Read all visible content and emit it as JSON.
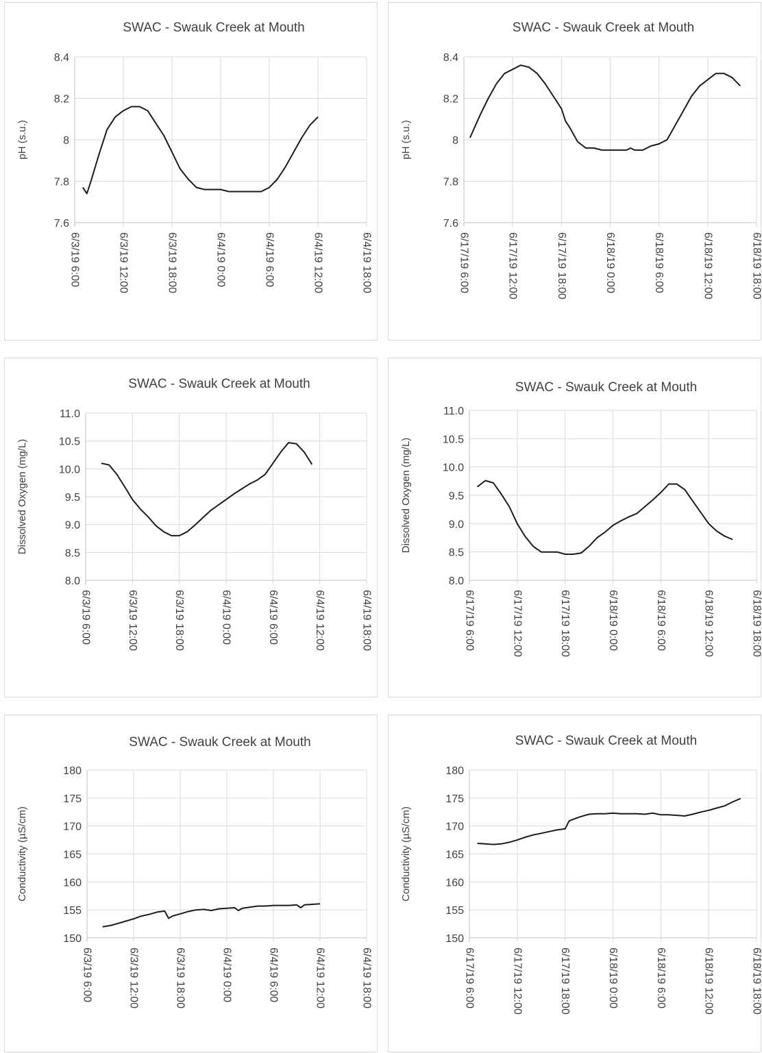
{
  "chart_data": [
    {
      "type": "line",
      "title": "SWAC - Swauk Creek at Mouth",
      "ylabel": "pH (s.u.)",
      "ylim": [
        7.6,
        8.4
      ],
      "yticks": [
        "7.6",
        "7.8",
        "8",
        "8.2",
        "8.4"
      ],
      "xlim": [
        "2019-06-03 06:00",
        "2019-06-04 18:00"
      ],
      "xticks": [
        "6/3/19 6:00",
        "6/3/19 12:00",
        "6/3/19 18:00",
        "6/4/19 0:00",
        "6/4/19 6:00",
        "6/4/19 12:00",
        "6/4/19 18:00"
      ],
      "grid": true,
      "series": [
        {
          "x": [
            "2019-06-03 07:00",
            "2019-06-03 07:30",
            "2019-06-03 08:00",
            "2019-06-03 09:00",
            "2019-06-03 10:00",
            "2019-06-03 11:00",
            "2019-06-03 12:00",
            "2019-06-03 13:00",
            "2019-06-03 14:00",
            "2019-06-03 15:00",
            "2019-06-03 16:00",
            "2019-06-03 17:00",
            "2019-06-03 18:00",
            "2019-06-03 19:00",
            "2019-06-03 20:00",
            "2019-06-03 21:00",
            "2019-06-03 22:00",
            "2019-06-04 00:00",
            "2019-06-04 01:00",
            "2019-06-04 03:00",
            "2019-06-04 05:00",
            "2019-06-04 06:00",
            "2019-06-04 07:00",
            "2019-06-04 08:00",
            "2019-06-04 09:00",
            "2019-06-04 10:00",
            "2019-06-04 11:00",
            "2019-06-04 12:00"
          ],
          "values": [
            7.77,
            7.74,
            7.8,
            7.93,
            8.05,
            8.11,
            8.14,
            8.16,
            8.16,
            8.14,
            8.08,
            8.02,
            7.94,
            7.86,
            7.81,
            7.77,
            7.76,
            7.76,
            7.75,
            7.75,
            7.75,
            7.77,
            7.81,
            7.87,
            7.94,
            8.01,
            8.07,
            8.11
          ]
        }
      ]
    },
    {
      "type": "line",
      "title": "SWAC - Swauk Creek at Mouth",
      "ylabel": "pH (s.u.)",
      "ylim": [
        7.6,
        8.4
      ],
      "yticks": [
        "7.6",
        "7.8",
        "8",
        "8.2",
        "8.4"
      ],
      "xlim": [
        "2019-06-17 06:00",
        "2019-06-18 18:00"
      ],
      "xticks": [
        "6/17/19 6:00",
        "6/17/19 12:00",
        "6/17/19 18:00",
        "6/18/19 0:00",
        "6/18/19 6:00",
        "6/18/19 12:00",
        "6/18/19 18:00"
      ],
      "grid": true,
      "series": [
        {
          "x": [
            "2019-06-17 06:45",
            "2019-06-17 08:00",
            "2019-06-17 09:00",
            "2019-06-17 10:00",
            "2019-06-17 11:00",
            "2019-06-17 12:00",
            "2019-06-17 13:00",
            "2019-06-17 14:00",
            "2019-06-17 15:00",
            "2019-06-17 16:00",
            "2019-06-17 17:00",
            "2019-06-17 18:00",
            "2019-06-17 18:30",
            "2019-06-17 19:00",
            "2019-06-17 20:00",
            "2019-06-17 21:00",
            "2019-06-17 22:00",
            "2019-06-17 23:00",
            "2019-06-18 00:00",
            "2019-06-18 01:00",
            "2019-06-18 02:00",
            "2019-06-18 02:30",
            "2019-06-18 03:00",
            "2019-06-18 04:00",
            "2019-06-18 05:00",
            "2019-06-18 06:00",
            "2019-06-18 07:00",
            "2019-06-18 08:00",
            "2019-06-18 09:00",
            "2019-06-18 10:00",
            "2019-06-18 11:00",
            "2019-06-18 12:00",
            "2019-06-18 13:00",
            "2019-06-18 14:00",
            "2019-06-18 15:00",
            "2019-06-18 16:00"
          ],
          "values": [
            8.01,
            8.12,
            8.2,
            8.27,
            8.32,
            8.34,
            8.36,
            8.35,
            8.32,
            8.27,
            8.21,
            8.15,
            8.09,
            8.06,
            7.99,
            7.96,
            7.96,
            7.95,
            7.95,
            7.95,
            7.95,
            7.96,
            7.95,
            7.95,
            7.97,
            7.98,
            8.0,
            8.07,
            8.14,
            8.21,
            8.26,
            8.29,
            8.32,
            8.32,
            8.3,
            8.26
          ]
        }
      ]
    },
    {
      "type": "line",
      "title": "SWAC - Swauk Creek at Mouth",
      "ylabel": "Dissolved Oxygen (mg/L)",
      "ylim": [
        8.0,
        11.0
      ],
      "yticks": [
        "8.0",
        "8.5",
        "9.0",
        "9.5",
        "10.0",
        "10.5",
        "11.0"
      ],
      "xlim": [
        "2019-06-03 06:00",
        "2019-06-04 18:00"
      ],
      "xticks": [
        "6/3/19 6:00",
        "6/3/19 12:00",
        "6/3/19 18:00",
        "6/4/19 0:00",
        "6/4/19 6:00",
        "6/4/19 12:00",
        "6/4/19 18:00"
      ],
      "grid": true,
      "series": [
        {
          "x": [
            "2019-06-03 08:00",
            "2019-06-03 09:00",
            "2019-06-03 10:00",
            "2019-06-03 11:00",
            "2019-06-03 12:00",
            "2019-06-03 13:00",
            "2019-06-03 14:00",
            "2019-06-03 15:00",
            "2019-06-03 16:00",
            "2019-06-03 17:00",
            "2019-06-03 18:00",
            "2019-06-03 19:00",
            "2019-06-03 20:00",
            "2019-06-03 21:00",
            "2019-06-03 22:00",
            "2019-06-03 23:00",
            "2019-06-04 00:00",
            "2019-06-04 01:00",
            "2019-06-04 02:00",
            "2019-06-04 03:00",
            "2019-06-04 04:00",
            "2019-06-04 05:00",
            "2019-06-04 06:00",
            "2019-06-04 07:00",
            "2019-06-04 08:00",
            "2019-06-04 09:00",
            "2019-06-04 10:00",
            "2019-06-04 11:00"
          ],
          "values": [
            10.1,
            10.07,
            9.9,
            9.68,
            9.45,
            9.28,
            9.14,
            8.98,
            8.87,
            8.8,
            8.8,
            8.87,
            8.99,
            9.12,
            9.25,
            9.35,
            9.45,
            9.55,
            9.64,
            9.73,
            9.8,
            9.9,
            10.1,
            10.3,
            10.47,
            10.45,
            10.3,
            10.08
          ]
        }
      ]
    },
    {
      "type": "line",
      "title": "SWAC - Swauk Creek at Mouth",
      "ylabel": "Dissolved Oxygen (mg/L)",
      "ylim": [
        8.0,
        11.0
      ],
      "yticks": [
        "8.0",
        "8.5",
        "9.0",
        "9.5",
        "10.0",
        "10.5",
        "11.0"
      ],
      "xlim": [
        "2019-06-17 06:00",
        "2019-06-18 18:00"
      ],
      "xticks": [
        "6/17/19 6:00",
        "6/17/19 12:00",
        "6/17/19 18:00",
        "6/18/19 0:00",
        "6/18/19 6:00",
        "6/18/19 12:00",
        "6/18/19 18:00"
      ],
      "grid": true,
      "series": [
        {
          "x": [
            "2019-06-17 07:00",
            "2019-06-17 08:00",
            "2019-06-17 09:00",
            "2019-06-17 10:00",
            "2019-06-17 11:00",
            "2019-06-17 12:00",
            "2019-06-17 13:00",
            "2019-06-17 14:00",
            "2019-06-17 15:00",
            "2019-06-17 16:00",
            "2019-06-17 17:00",
            "2019-06-17 18:00",
            "2019-06-17 19:00",
            "2019-06-17 20:00",
            "2019-06-17 21:00",
            "2019-06-17 22:00",
            "2019-06-17 23:00",
            "2019-06-18 00:00",
            "2019-06-18 01:00",
            "2019-06-18 02:00",
            "2019-06-18 03:00",
            "2019-06-18 04:00",
            "2019-06-18 05:00",
            "2019-06-18 06:00",
            "2019-06-18 07:00",
            "2019-06-18 08:00",
            "2019-06-18 09:00",
            "2019-06-18 10:00",
            "2019-06-18 11:00",
            "2019-06-18 12:00",
            "2019-06-18 13:00",
            "2019-06-18 14:00",
            "2019-06-18 15:00"
          ],
          "values": [
            9.65,
            9.76,
            9.72,
            9.52,
            9.3,
            9.0,
            8.77,
            8.6,
            8.5,
            8.5,
            8.5,
            8.46,
            8.46,
            8.48,
            8.6,
            8.75,
            8.85,
            8.97,
            9.05,
            9.12,
            9.18,
            9.3,
            9.42,
            9.55,
            9.7,
            9.7,
            9.6,
            9.4,
            9.2,
            9.0,
            8.87,
            8.78,
            8.72
          ]
        }
      ]
    },
    {
      "type": "line",
      "title": "SWAC - Swauk Creek at Mouth",
      "ylabel": "Conductivity (µS/cm)",
      "ylim": [
        150,
        180
      ],
      "yticks": [
        "150",
        "155",
        "160",
        "165",
        "170",
        "175",
        "180"
      ],
      "xlim": [
        "2019-06-03 06:00",
        "2019-06-04 18:00"
      ],
      "xticks": [
        "6/3/19 6:00",
        "6/3/19 12:00",
        "6/3/19 18:00",
        "6/4/19 0:00",
        "6/4/19 6:00",
        "6/4/19 12:00",
        "6/4/19 18:00"
      ],
      "grid": true,
      "series": [
        {
          "x": [
            "2019-06-03 08:00",
            "2019-06-03 09:00",
            "2019-06-03 10:00",
            "2019-06-03 11:00",
            "2019-06-03 12:00",
            "2019-06-03 13:00",
            "2019-06-03 14:00",
            "2019-06-03 15:00",
            "2019-06-03 16:00",
            "2019-06-03 16:30",
            "2019-06-03 17:00",
            "2019-06-03 18:00",
            "2019-06-03 19:00",
            "2019-06-03 20:00",
            "2019-06-03 21:00",
            "2019-06-03 22:00",
            "2019-06-03 23:00",
            "2019-06-04 00:00",
            "2019-06-04 01:00",
            "2019-06-04 01:30",
            "2019-06-04 02:00",
            "2019-06-04 03:00",
            "2019-06-04 04:00",
            "2019-06-04 05:00",
            "2019-06-04 06:00",
            "2019-06-04 07:00",
            "2019-06-04 08:00",
            "2019-06-04 09:00",
            "2019-06-04 09:30",
            "2019-06-04 10:00",
            "2019-06-04 11:00",
            "2019-06-04 12:00"
          ],
          "values": [
            152.0,
            152.2,
            152.6,
            153.0,
            153.4,
            153.9,
            154.2,
            154.6,
            154.8,
            153.5,
            153.9,
            154.3,
            154.7,
            155.0,
            155.1,
            154.9,
            155.2,
            155.3,
            155.4,
            154.9,
            155.3,
            155.5,
            155.7,
            155.7,
            155.8,
            155.8,
            155.8,
            155.9,
            155.4,
            155.9,
            156.0,
            156.1
          ]
        }
      ]
    },
    {
      "type": "line",
      "title": "SWAC - Swauk Creek at Mouth",
      "ylabel": "Conductivity (µS/cm)",
      "ylim": [
        150,
        180
      ],
      "yticks": [
        "150",
        "155",
        "160",
        "165",
        "170",
        "175",
        "180"
      ],
      "xlim": [
        "2019-06-17 06:00",
        "2019-06-18 18:00"
      ],
      "xticks": [
        "6/17/19 6:00",
        "6/17/19 12:00",
        "6/17/19 18:00",
        "6/18/19 0:00",
        "6/18/19 6:00",
        "6/18/19 12:00",
        "6/18/19 18:00"
      ],
      "grid": true,
      "series": [
        {
          "x": [
            "2019-06-17 07:00",
            "2019-06-17 08:00",
            "2019-06-17 09:00",
            "2019-06-17 10:00",
            "2019-06-17 11:00",
            "2019-06-17 12:00",
            "2019-06-17 13:00",
            "2019-06-17 14:00",
            "2019-06-17 15:00",
            "2019-06-17 16:00",
            "2019-06-17 17:00",
            "2019-06-17 18:00",
            "2019-06-17 18:30",
            "2019-06-17 19:00",
            "2019-06-17 20:00",
            "2019-06-17 21:00",
            "2019-06-17 22:00",
            "2019-06-17 23:00",
            "2019-06-18 00:00",
            "2019-06-18 01:00",
            "2019-06-18 02:00",
            "2019-06-18 03:00",
            "2019-06-18 04:00",
            "2019-06-18 05:00",
            "2019-06-18 06:00",
            "2019-06-18 07:00",
            "2019-06-18 08:00",
            "2019-06-18 09:00",
            "2019-06-18 10:00",
            "2019-06-18 11:00",
            "2019-06-18 12:00",
            "2019-06-18 13:00",
            "2019-06-18 14:00",
            "2019-06-18 15:00",
            "2019-06-18 16:00"
          ],
          "values": [
            166.9,
            166.8,
            166.7,
            166.8,
            167.1,
            167.5,
            168.0,
            168.4,
            168.7,
            169.0,
            169.3,
            169.5,
            170.9,
            171.2,
            171.7,
            172.1,
            172.2,
            172.2,
            172.3,
            172.2,
            172.2,
            172.2,
            172.1,
            172.3,
            172.0,
            172.0,
            171.9,
            171.8,
            172.1,
            172.5,
            172.8,
            173.2,
            173.6,
            174.3,
            174.9
          ]
        }
      ]
    }
  ]
}
